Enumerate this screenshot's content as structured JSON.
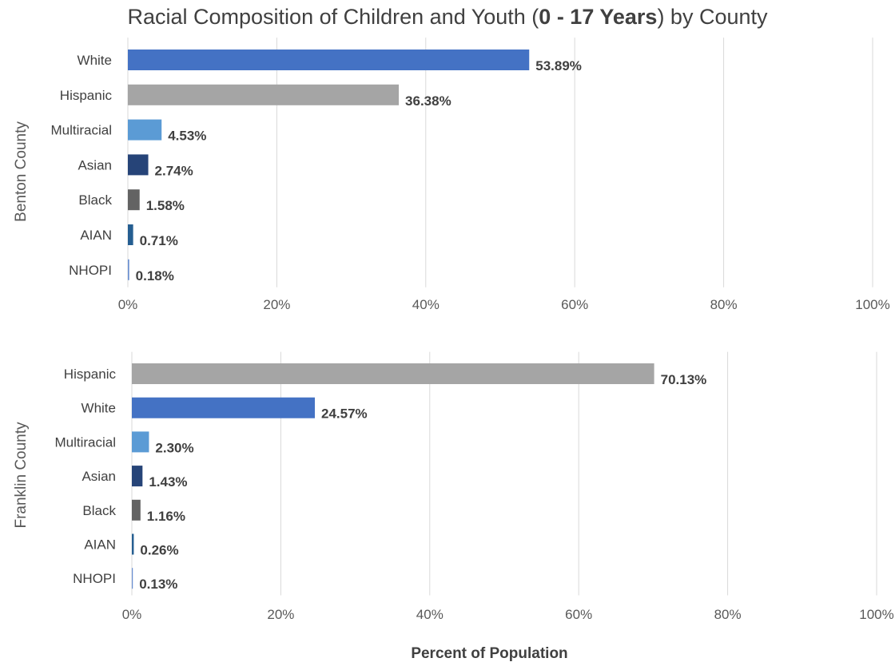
{
  "title": {
    "prefix": "Racial Composition of Children and Youth (",
    "bold": "0 - 17 Years",
    "suffix": ") by County"
  },
  "chart_data": [
    {
      "type": "bar",
      "orientation": "horizontal",
      "ylabel": "Benton County",
      "categories": [
        "White",
        "Hispanic",
        "Multiracial",
        "Asian",
        "Black",
        "AIAN",
        "NHOPI"
      ],
      "values": [
        53.89,
        36.38,
        4.53,
        2.74,
        1.58,
        0.71,
        0.18
      ],
      "data_labels": [
        "53.89%",
        "36.38%",
        "4.53%",
        "2.74%",
        "1.58%",
        "0.71%",
        "0.18%"
      ],
      "colors": [
        "#4472C4",
        "#A5A5A5",
        "#5B9BD5",
        "#264478",
        "#636363",
        "#255E91",
        "#698ED0"
      ],
      "xlim": [
        0,
        100
      ],
      "ticks": [
        "0%",
        "20%",
        "40%",
        "60%",
        "80%",
        "100%"
      ],
      "grid": true
    },
    {
      "type": "bar",
      "orientation": "horizontal",
      "ylabel": "Franklin County",
      "categories": [
        "Hispanic",
        "White",
        "Multiracial",
        "Asian",
        "Black",
        "AIAN",
        "NHOPI"
      ],
      "values": [
        70.13,
        24.57,
        2.3,
        1.43,
        1.16,
        0.26,
        0.13
      ],
      "data_labels": [
        "70.13%",
        "24.57%",
        "2.30%",
        "1.43%",
        "1.16%",
        "0.26%",
        "0.13%"
      ],
      "colors": [
        "#A5A5A5",
        "#4472C4",
        "#5B9BD5",
        "#264478",
        "#636363",
        "#255E91",
        "#698ED0"
      ],
      "xlim": [
        0,
        100
      ],
      "ticks": [
        "0%",
        "20%",
        "40%",
        "60%",
        "80%",
        "100%"
      ],
      "grid": true
    }
  ],
  "xlabel": "Percent of Population"
}
